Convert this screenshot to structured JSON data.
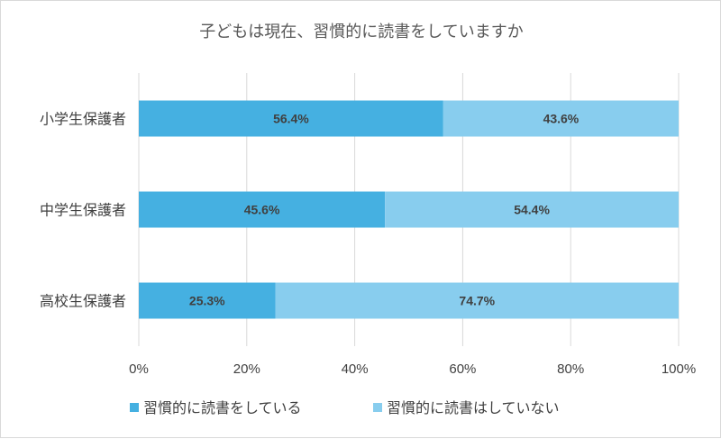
{
  "chart_data": {
    "type": "bar",
    "orientation": "horizontal",
    "stacked": "percent",
    "title": "子どもは現在、習慣的に読書をしていますか",
    "categories": [
      "小学生保護者",
      "中学生保護者",
      "高校生保護者"
    ],
    "series": [
      {
        "name": "習慣的に読書をしている",
        "values": [
          56.4,
          45.6,
          25.3
        ],
        "color": "#45b0e1"
      },
      {
        "name": "習慣的に読書はしていない",
        "values": [
          43.6,
          54.4,
          74.7
        ],
        "color": "#88cdee"
      }
    ],
    "data_labels": [
      [
        "56.4%",
        "45.6%",
        "25.3%"
      ],
      [
        "43.6%",
        "54.4%",
        "74.7%"
      ]
    ],
    "x_ticks": [
      "0%",
      "20%",
      "40%",
      "60%",
      "80%",
      "100%"
    ],
    "xlim": [
      0,
      100
    ],
    "grid": true,
    "legend_position": "bottom"
  }
}
